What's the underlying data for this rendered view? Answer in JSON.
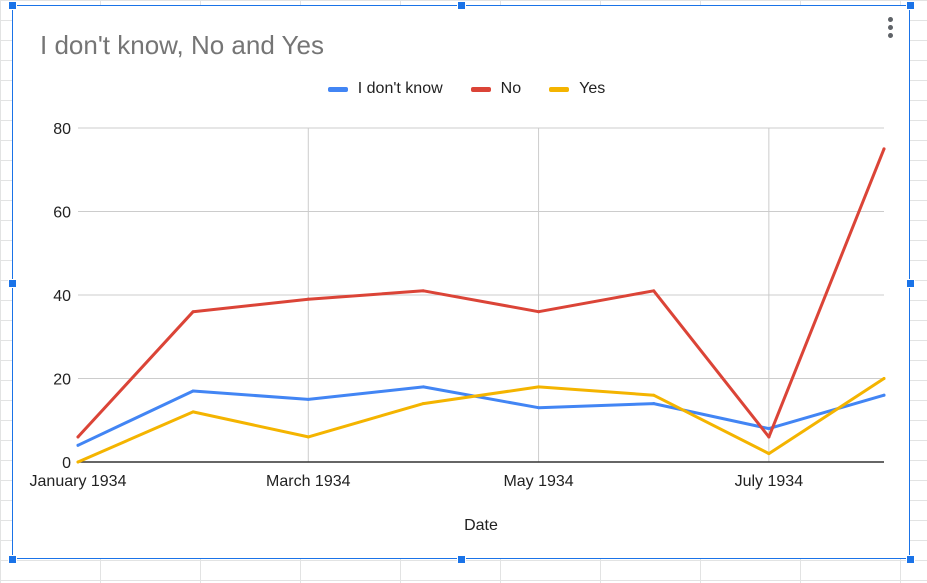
{
  "window": {
    "menu_icon": "more-vert-icon",
    "selection_color": "#1a73e8"
  },
  "chart_data": {
    "type": "line",
    "title": "I don't know, No and Yes",
    "xlabel": "Date",
    "ylabel": "",
    "x": [
      "1934-01",
      "1934-02",
      "1934-03",
      "1934-04",
      "1934-05",
      "1934-06",
      "1934-07",
      "1934-08"
    ],
    "x_tick_labels": [
      "January 1934",
      "March 1934",
      "May 1934",
      "July 1934"
    ],
    "x_tick_positions": [
      "1934-01",
      "1934-03",
      "1934-05",
      "1934-07"
    ],
    "ylim": [
      0,
      80
    ],
    "y_ticks": [
      0,
      20,
      40,
      60,
      80
    ],
    "grid": true,
    "legend": "top",
    "series": [
      {
        "name": "I don't know",
        "color": "#4285f4",
        "values": [
          4,
          17,
          15,
          18,
          13,
          14,
          8,
          16
        ]
      },
      {
        "name": "No",
        "color": "#db4437",
        "values": [
          6,
          36,
          39,
          41,
          36,
          41,
          6,
          75
        ]
      },
      {
        "name": "Yes",
        "color": "#f4b400",
        "values": [
          0,
          12,
          6,
          14,
          18,
          16,
          2,
          20
        ]
      }
    ]
  }
}
